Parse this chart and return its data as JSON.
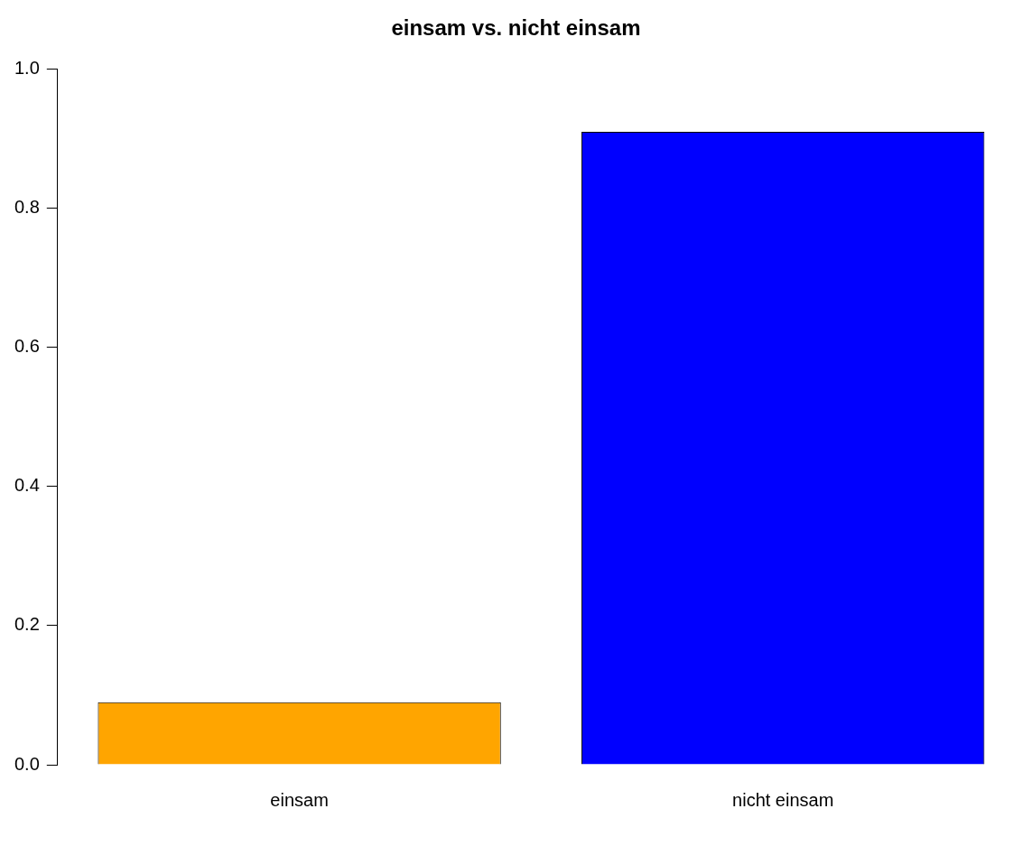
{
  "chart_data": {
    "type": "bar",
    "title": "einsam vs. nicht einsam",
    "categories": [
      "einsam",
      "nicht einsam"
    ],
    "values": [
      0.09,
      0.91
    ],
    "colors": [
      "#ffa500",
      "#0000ff"
    ],
    "ylim": [
      0,
      1
    ],
    "yticks": [
      {
        "value": 0,
        "label": "0.0"
      },
      {
        "value": 0.2,
        "label": "0.2"
      },
      {
        "value": 0.4,
        "label": "0.4"
      },
      {
        "value": 0.6,
        "label": "0.6"
      },
      {
        "value": 0.8,
        "label": "0.8"
      },
      {
        "value": 1,
        "label": "1.0"
      }
    ],
    "grid": false,
    "legend": false
  }
}
